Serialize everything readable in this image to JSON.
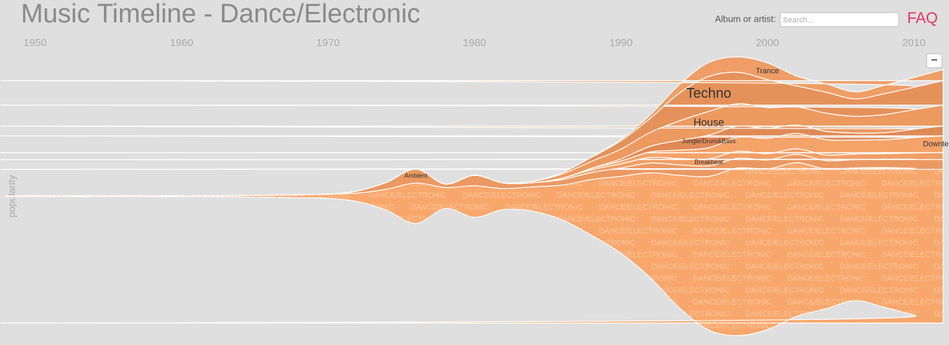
{
  "search": {
    "label": "Album or artist:",
    "placeholder": "Search..."
  },
  "faq": "FAQ",
  "controls": {
    "collapse": "−"
  },
  "chart_data": {
    "type": "streamgraph",
    "title": "Music Timeline - Dance/Electronic",
    "ylabel": "popularity",
    "xlim": [
      1947.6,
      2012.4
    ],
    "xticks": [
      1950,
      1960,
      1970,
      1980,
      1990,
      2000,
      2010
    ],
    "ylim": [
      -213,
      213
    ],
    "x": [
      1948,
      1950,
      1952,
      1954,
      1956,
      1958,
      1960,
      1962,
      1964,
      1966,
      1968,
      1970,
      1972,
      1974,
      1976,
      1978,
      1980,
      1982,
      1984,
      1986,
      1988,
      1990,
      1992,
      1994,
      1996,
      1998,
      2000,
      2002,
      2004,
      2006,
      2008,
      2010,
      2012
    ],
    "series": [
      {
        "name": "DANCE/ELECTRONIC",
        "color": "#f8a76c",
        "values": [
          1,
          1,
          1,
          1,
          1,
          1,
          1,
          1,
          2,
          3,
          4,
          6,
          12,
          30,
          58,
          30,
          45,
          30,
          35,
          50,
          80,
          110,
          150,
          190,
          220,
          240,
          230,
          220,
          200,
          190,
          200,
          210,
          220
        ]
      },
      {
        "name": "Ambient",
        "color": "#eb9962",
        "values": [
          0,
          0,
          0,
          0,
          0,
          0,
          0,
          0,
          0,
          0,
          0,
          0,
          3,
          10,
          20,
          5,
          15,
          8,
          6,
          8,
          10,
          12,
          14,
          15,
          15,
          14,
          13,
          12,
          12,
          12,
          12,
          13,
          14
        ]
      },
      {
        "name": "Breakbeat",
        "color": "#f09f66",
        "values": [
          0,
          0,
          0,
          0,
          0,
          0,
          0,
          0,
          0,
          0,
          0,
          0,
          0,
          0,
          0,
          0,
          0,
          0,
          0,
          2,
          4,
          6,
          8,
          9,
          10,
          10,
          9,
          8,
          8,
          8,
          8,
          9,
          10
        ]
      },
      {
        "name": "Downtempo",
        "color": "#f4a369",
        "values": [
          0,
          0,
          0,
          0,
          0,
          0,
          0,
          0,
          0,
          0,
          0,
          0,
          0,
          0,
          0,
          0,
          0,
          0,
          0,
          0,
          2,
          4,
          8,
          12,
          16,
          20,
          22,
          22,
          22,
          20,
          20,
          22,
          24
        ]
      },
      {
        "name": "Jungle/Drum&Bass",
        "color": "#e08a55",
        "values": [
          0,
          0,
          0,
          0,
          0,
          0,
          0,
          0,
          0,
          0,
          0,
          0,
          0,
          0,
          0,
          0,
          0,
          0,
          0,
          0,
          0,
          3,
          8,
          14,
          18,
          16,
          14,
          12,
          12,
          10,
          10,
          12,
          14
        ]
      },
      {
        "name": "House",
        "color": "#ec9a60",
        "values": [
          0,
          0,
          0,
          0,
          0,
          0,
          0,
          0,
          0,
          0,
          0,
          0,
          0,
          0,
          0,
          0,
          0,
          0,
          2,
          6,
          10,
          14,
          20,
          28,
          34,
          32,
          30,
          26,
          26,
          24,
          26,
          28,
          30
        ]
      },
      {
        "name": "Techno",
        "color": "#e5925a",
        "values": [
          0,
          0,
          0,
          0,
          0,
          0,
          0,
          0,
          0,
          0,
          0,
          0,
          0,
          0,
          0,
          0,
          0,
          0,
          0,
          2,
          6,
          12,
          20,
          40,
          50,
          45,
          40,
          30,
          30,
          25,
          30,
          32,
          35
        ]
      },
      {
        "name": "Trance",
        "color": "#ee9e66",
        "values": [
          0,
          0,
          0,
          0,
          0,
          0,
          0,
          0,
          0,
          0,
          0,
          0,
          0,
          0,
          0,
          0,
          0,
          0,
          0,
          0,
          0,
          2,
          5,
          12,
          20,
          22,
          24,
          14,
          12,
          10,
          12,
          14,
          16
        ]
      }
    ]
  }
}
